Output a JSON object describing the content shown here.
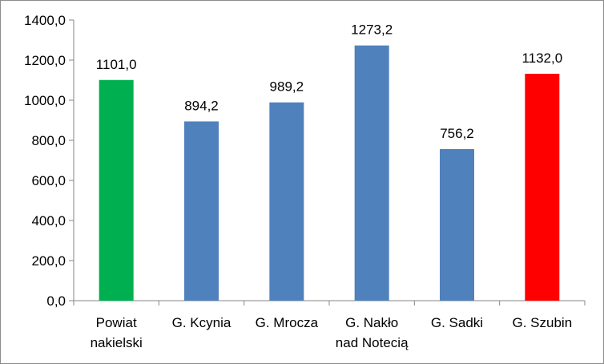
{
  "chart_data": {
    "type": "bar",
    "title": "",
    "xlabel": "",
    "ylabel": "",
    "categories": [
      [
        "Powiat",
        "nakielski"
      ],
      [
        "G. Kcynia"
      ],
      [
        "G. Mrocza"
      ],
      [
        "G. Nakło",
        "nad Notecią"
      ],
      [
        "G. Sadki"
      ],
      [
        "G. Szubin"
      ]
    ],
    "values": [
      1101.0,
      894.2,
      989.2,
      1273.2,
      756.2,
      1132.0
    ],
    "value_labels": [
      "1101,0",
      "894,2",
      "989,2",
      "1273,2",
      "756,2",
      "1132,0"
    ],
    "bar_colors": [
      "#00b050",
      "#4f81bd",
      "#4f81bd",
      "#4f81bd",
      "#4f81bd",
      "#ff0000"
    ],
    "ylim": [
      0,
      1400
    ],
    "yticks": [
      0,
      200,
      400,
      600,
      800,
      1000,
      1200,
      1400
    ],
    "ytick_labels": [
      "0,0",
      "200,0",
      "400,0",
      "600,0",
      "800,0",
      "1000,0",
      "1200,0",
      "1400,0"
    ],
    "grid": false,
    "legend": "none"
  }
}
